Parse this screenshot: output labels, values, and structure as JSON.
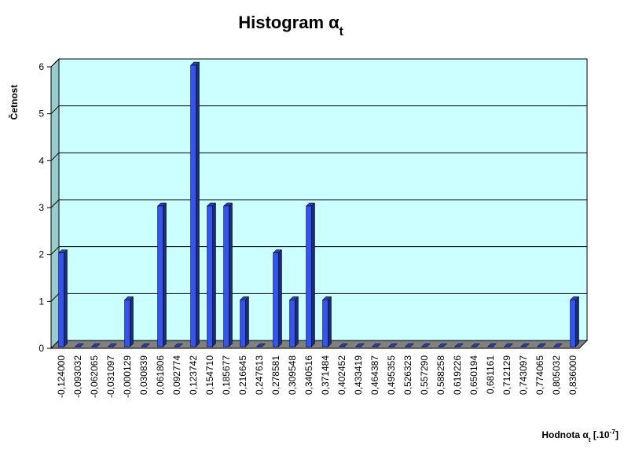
{
  "chart_data": {
    "type": "bar",
    "title": [
      {
        "text": "Histogram α"
      },
      {
        "text": "t",
        "shift": "sub"
      }
    ],
    "y_label": "Četnost",
    "x_label": [
      {
        "text": "Hodnota α"
      },
      {
        "text": "t",
        "shift": "sub"
      },
      {
        "text": " [.10"
      },
      {
        "text": "-7",
        "shift": "super"
      },
      {
        "text": "]"
      }
    ],
    "categories": [
      "-0,124000",
      "-0,093032",
      "-0,062065",
      "-0,031097",
      "-0,000129",
      "0,030839",
      "0,061806",
      "0,092774",
      "0,123742",
      "0,154710",
      "0,185677",
      "0,216645",
      "0,247613",
      "0,278581",
      "0,309548",
      "0,340516",
      "0,371484",
      "0,402452",
      "0,433419",
      "0,464387",
      "0,495355",
      "0,526323",
      "0,557290",
      "0,588258",
      "0,619226",
      "0,650194",
      "0,681161",
      "0,712129",
      "0,743097",
      "0,774065",
      "0,805032",
      "0,836000"
    ],
    "values": [
      2,
      0,
      0,
      0,
      1,
      0,
      3,
      0,
      6,
      3,
      3,
      1,
      0,
      2,
      1,
      3,
      1,
      0,
      0,
      0,
      0,
      0,
      0,
      0,
      0,
      0,
      0,
      0,
      0,
      0,
      0,
      1
    ],
    "color": "#3355ee",
    "ylim": [
      0,
      6
    ],
    "yticks": [
      0,
      1,
      2,
      3,
      4,
      5,
      6
    ],
    "grid": true
  }
}
